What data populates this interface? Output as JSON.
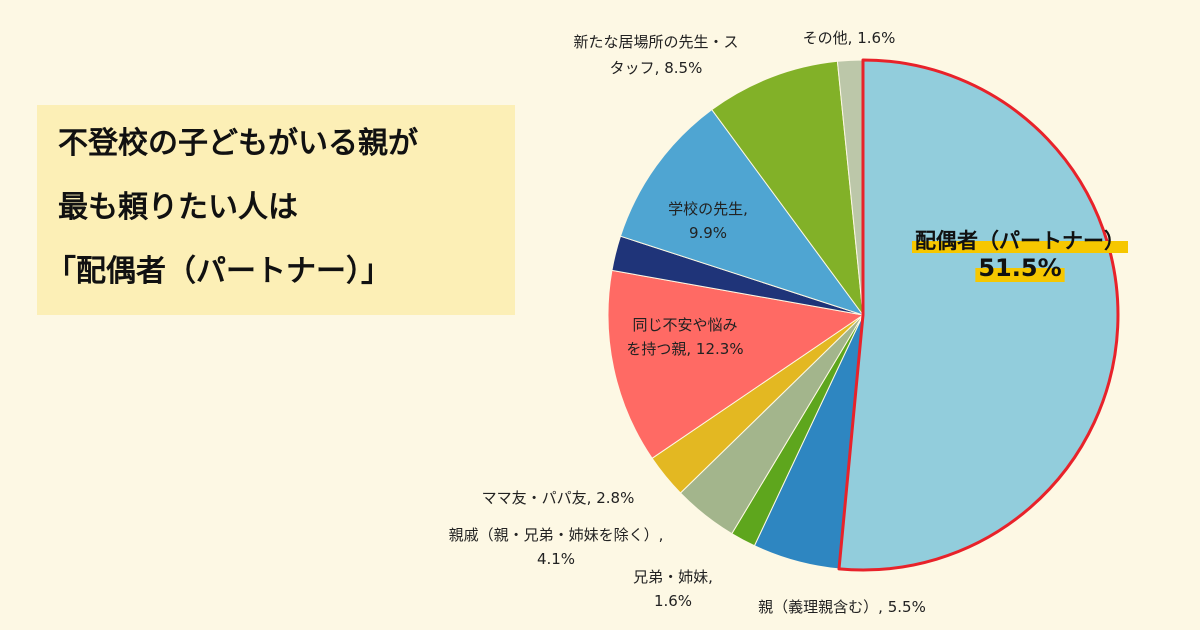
{
  "headline": {
    "line1": "不登校の子どもがいる親が",
    "line2": "最も頼りたい人は",
    "line3": "「配偶者（パートナー）」"
  },
  "chart_data": {
    "type": "pie",
    "start_angle_deg": 0,
    "direction": "clockwise",
    "slices": [
      {
        "label": "配偶者（パートナー）",
        "value": 51.5,
        "color": "#92cddc",
        "highlight": true
      },
      {
        "label": "親（義理親含む）",
        "value": 5.5,
        "color": "#2e86c1"
      },
      {
        "label": "兄弟・姉妹",
        "value": 1.6,
        "color": "#5ea61d"
      },
      {
        "label": "親戚（親・兄弟・姉妹を除く）",
        "value": 4.1,
        "color": "#a3b58c"
      },
      {
        "label": "ママ友・パパ友",
        "value": 2.8,
        "color": "#e3b822"
      },
      {
        "label": "同じ不安や悩みを持つ親",
        "value": 12.3,
        "color": "#ff6a64"
      },
      {
        "label": "",
        "value": 2.2,
        "color": "#1f3479"
      },
      {
        "label": "学校の先生",
        "value": 9.9,
        "color": "#4fa5d2"
      },
      {
        "label": "新たな居場所の先生・スタッフ",
        "value": 8.5,
        "color": "#82b128"
      },
      {
        "label": "その他",
        "value": 1.6,
        "color": "#bcc7a9"
      }
    ],
    "labels": [
      {
        "lines": [
          "配偶者（パートナー）",
          "51.5%"
        ],
        "slice": 0,
        "style": "highlight"
      },
      {
        "lines": [
          "親（義理親含む）, 5.5%"
        ],
        "slice": 1,
        "style": "normal"
      },
      {
        "lines": [
          "兄弟・姉妹,",
          "1.6%"
        ],
        "slice": 2,
        "style": "normal"
      },
      {
        "lines": [
          "親戚（親・兄弟・姉妹を除く）,",
          "4.1%"
        ],
        "slice": 3,
        "style": "normal"
      },
      {
        "lines": [
          "ママ友・パパ友, 2.8%"
        ],
        "slice": 4,
        "style": "normal"
      },
      {
        "lines": [
          "同じ不安や悩み",
          "を持つ親, 12.3%"
        ],
        "slice": 5,
        "style": "normal"
      },
      {
        "lines": [
          "学校の先生,",
          "9.9%"
        ],
        "slice": 7,
        "style": "normal"
      },
      {
        "lines": [
          "新たな居場所の先生・ス",
          "タッフ, 8.5%"
        ],
        "slice": 8,
        "style": "normal"
      },
      {
        "lines": [
          "その他, 1.6%"
        ],
        "slice": 9,
        "style": "normal"
      }
    ]
  }
}
